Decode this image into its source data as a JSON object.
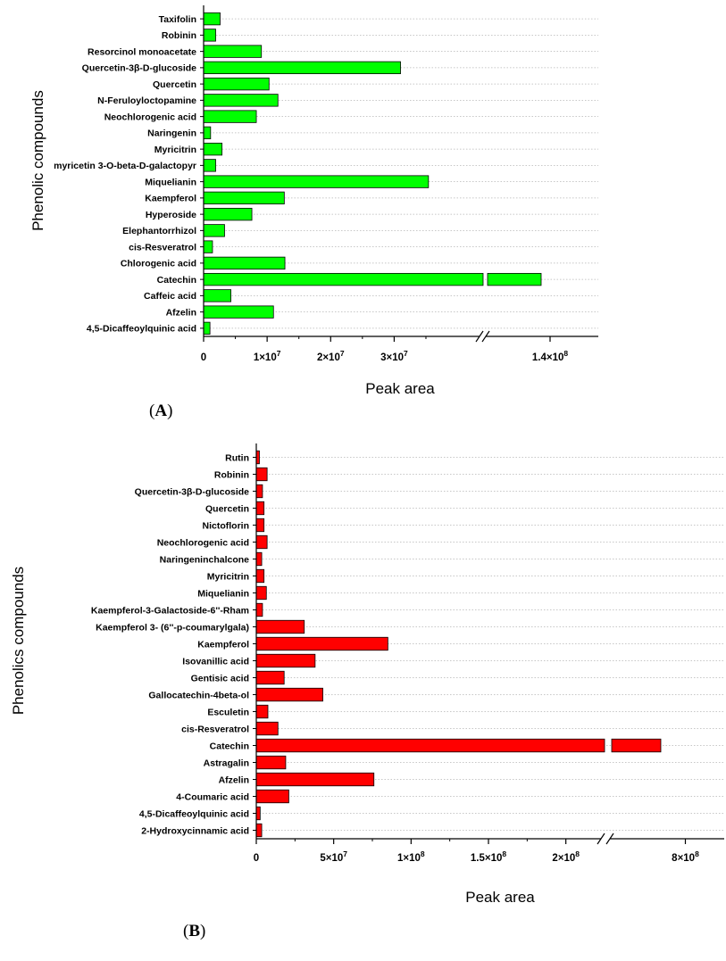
{
  "chart_data": [
    {
      "type": "bar",
      "orientation": "horizontal",
      "panel_label": "A",
      "xlabel": "Peak area",
      "ylabel": "Phenolic compounds",
      "color": "#00ff00",
      "axis_break": true,
      "xlim_low": [
        0,
        44000000
      ],
      "xlim_high": [
        133000000,
        144000000
      ],
      "x_ticks": [
        {
          "value": 0,
          "label": "0",
          "sup": ""
        },
        {
          "value": 10000000,
          "label": "1×10",
          "sup": "7"
        },
        {
          "value": 20000000,
          "label": "2×10",
          "sup": "7"
        },
        {
          "value": 30000000,
          "label": "3×10",
          "sup": "7"
        },
        {
          "value": 140000000,
          "label": "1.4×10",
          "sup": "8"
        }
      ],
      "grid": "dotted horizontal",
      "categories": [
        "Taxifolin",
        "Robinin",
        "Resorcinol monoacetate",
        "Quercetin-3β-D-glucoside",
        "Quercetin",
        "N-Feruloyloctopamine",
        "Neochlorogenic acid",
        "Naringenin",
        "Myricitrin",
        "myricetin 3-O-beta-D-galactopyr",
        "Miquelianin",
        "Kaempferol",
        "Hyperoside",
        "Elephantorrhizol",
        "cis-Resveratrol",
        "Chlorogenic acid",
        "Catechin",
        "Caffeic acid",
        "Afzelin",
        "4,5-Dicaffeoylquinic acid"
      ],
      "values": [
        2600000,
        1900000,
        9100000,
        31000000,
        10300000,
        11700000,
        8300000,
        1100000,
        2900000,
        1900000,
        35400000,
        12700000,
        7600000,
        3300000,
        1400000,
        12800000,
        139000000,
        4300000,
        11000000,
        1000000
      ]
    },
    {
      "type": "bar",
      "orientation": "horizontal",
      "panel_label": "B",
      "xlabel": "Peak area",
      "ylabel": "Phenolics compounds",
      "color": "#ff0000",
      "axis_break": true,
      "xlim_low": [
        0,
        225000000
      ],
      "xlim_high": [
        740000000,
        820000000
      ],
      "x_ticks": [
        {
          "value": 0,
          "label": "0",
          "sup": ""
        },
        {
          "value": 50000000,
          "label": "5×10",
          "sup": "7"
        },
        {
          "value": 100000000,
          "label": "1×10",
          "sup": "8"
        },
        {
          "value": 150000000,
          "label": "1.5×10",
          "sup": "8"
        },
        {
          "value": 200000000,
          "label": "2×10",
          "sup": "8"
        },
        {
          "value": 800000000,
          "label": "8×10",
          "sup": "8"
        }
      ],
      "grid": "dotted horizontal",
      "categories": [
        "Rutin",
        "Robinin",
        "Quercetin-3β-D-glucoside",
        "Quercetin",
        "Nictoflorin",
        "Neochlorogenic acid",
        "Naringeninchalcone",
        "Myricitrin",
        "Miquelianin",
        "Kaempferol-3-Galactoside-6''-Rham",
        "Kaempferol 3- (6''-p-coumarylgala)",
        "Kaempferol",
        "Isovanillic acid",
        "Gentisic acid",
        "Gallocatechin-4beta-ol",
        "Esculetin",
        "cis-Resveratrol",
        "Catechin",
        "Astragalin",
        "Afzelin",
        "4-Coumaric acid",
        "4,5-Dicaffeoylquinic acid",
        "2-Hydroxycinnamic acid"
      ],
      "values": [
        2000000,
        7000000,
        4000000,
        5000000,
        5000000,
        7000000,
        3500000,
        5000000,
        6500000,
        4000000,
        31000000,
        85000000,
        38000000,
        18000000,
        43000000,
        7500000,
        14000000,
        780000000,
        19000000,
        76000000,
        21000000,
        2500000,
        3500000
      ]
    }
  ]
}
